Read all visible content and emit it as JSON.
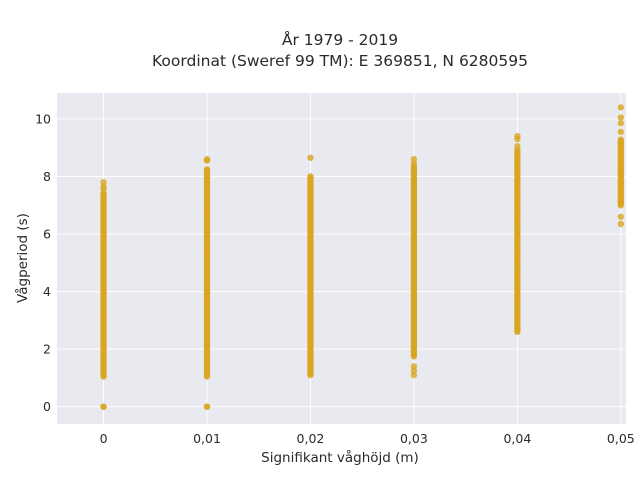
{
  "chart_data": {
    "type": "scatter",
    "title": "År 1979 - 2019",
    "subtitle": "Koordinat (Sweref 99 TM): E 369851, N 6280595",
    "xlabel": "Signifikant våghöjd (m)",
    "ylabel": "Vågperiod (s)",
    "xlim": [
      -0.0045,
      0.0505
    ],
    "ylim": [
      -0.6,
      10.9
    ],
    "xticks": [
      0,
      0.01,
      0.02,
      0.03,
      0.04,
      0.05
    ],
    "xtick_labels": [
      "0",
      "0,01",
      "0,02",
      "0,03",
      "0,04",
      "0,05"
    ],
    "yticks": [
      0,
      2,
      4,
      6,
      8,
      10
    ],
    "ytick_labels": [
      "0",
      "2",
      "4",
      "6",
      "8",
      "10"
    ],
    "grid": true,
    "background": "#e9e9f0",
    "marker_color": "#d9a521",
    "columns": [
      {
        "x": 0,
        "y_min": 1.05,
        "y_max": 7.45,
        "outliers": [
          0,
          0,
          7.55,
          7.65,
          7.8
        ]
      },
      {
        "x": 0.01,
        "y_min": 1.05,
        "y_max": 8.3,
        "outliers": [
          0,
          0,
          8.55,
          8.6
        ]
      },
      {
        "x": 0.02,
        "y_min": 1.1,
        "y_max": 8.05,
        "outliers": [
          8.65
        ]
      },
      {
        "x": 0.03,
        "y_min": 1.75,
        "y_max": 8.35,
        "outliers": [
          1.1,
          1.25,
          1.4,
          8.45,
          8.6
        ]
      },
      {
        "x": 0.04,
        "y_min": 2.6,
        "y_max": 8.95,
        "outliers": [
          9.05,
          9.3,
          9.4
        ]
      },
      {
        "x": 0.05,
        "y_min": 7.0,
        "y_max": 9.3,
        "outliers": [
          6.35,
          6.6,
          9.55,
          9.85,
          10.05,
          10.4
        ]
      }
    ]
  }
}
